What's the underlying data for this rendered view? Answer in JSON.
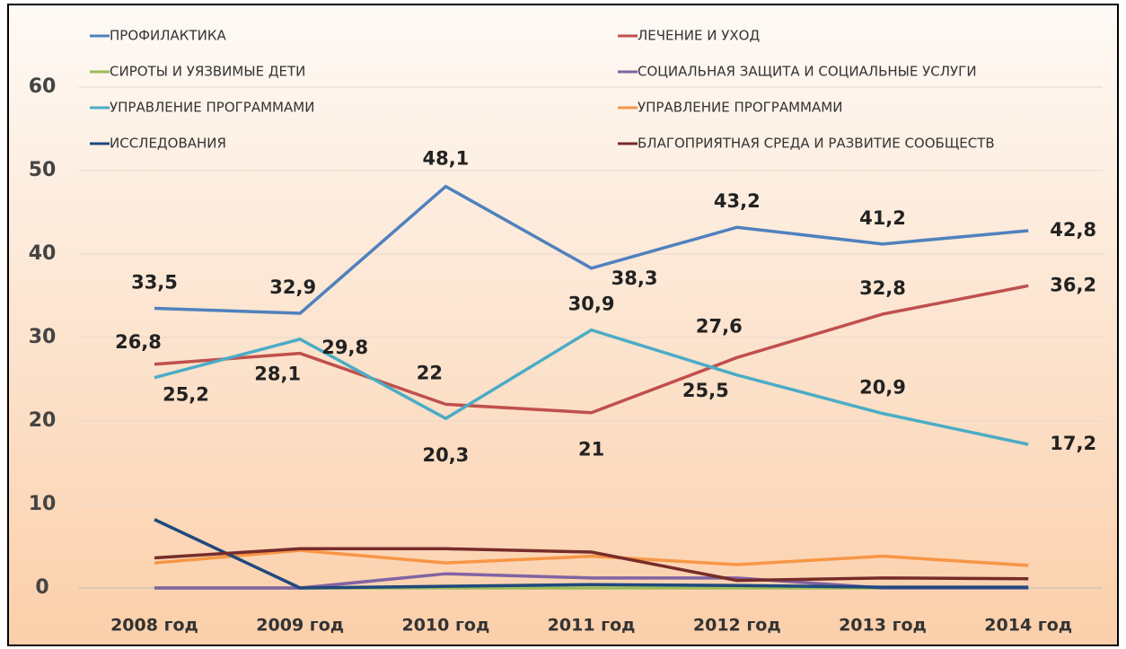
{
  "chart_data": {
    "type": "line",
    "categories": [
      "2008 год",
      "2009 год",
      "2010 год",
      "2011 год",
      "2012 год",
      "2013 год",
      "2014 год"
    ],
    "ylim": [
      0,
      60
    ],
    "yticks": [
      0,
      10,
      20,
      30,
      40,
      50,
      60
    ],
    "grid": true,
    "series": [
      {
        "name": "ПРОФИЛАКТИКА",
        "color": "#4f81bd",
        "values": [
          33.5,
          32.9,
          48.1,
          38.3,
          43.2,
          41.2,
          42.8
        ],
        "value_labels": [
          "33,5",
          "32,9",
          "48,1",
          "38,3",
          "43,2",
          "41,2",
          "42,8"
        ]
      },
      {
        "name": "ЛЕЧЕНИЕ И УХОД",
        "color": "#c0504d",
        "values": [
          26.8,
          28.1,
          22,
          21,
          27.6,
          32.8,
          36.2
        ],
        "value_labels": [
          "26,8",
          "28,1",
          "22",
          "21",
          "27,6",
          "32,8",
          "36,2"
        ]
      },
      {
        "name": "СИРОТЫ И УЯЗВИМЫЕ ДЕТИ",
        "color": "#9bbb59",
        "values": [
          0,
          0,
          0,
          0,
          0,
          0,
          0
        ]
      },
      {
        "name": "СОЦИАЛЬНАЯ ЗАЩИТА И СОЦИАЛЬНЫЕ УСЛУГИ",
        "color": "#8064a2",
        "values": [
          0,
          0,
          1.7,
          1.2,
          1.2,
          0,
          0
        ]
      },
      {
        "name": "УПРАВЛЕНИЕ ПРОГРАММАМИ",
        "color": "#4bacc6",
        "values": [
          25.2,
          29.8,
          20.3,
          30.9,
          25.5,
          20.9,
          17.2
        ],
        "value_labels": [
          "25,2",
          "29,8",
          "20,3",
          "30,9",
          "25,5",
          "20,9",
          "17,2"
        ]
      },
      {
        "name": "УПРАВЛЕНИЕ ПРОГРАММАМИ",
        "color": "#f79646",
        "values": [
          3,
          4.5,
          3,
          3.8,
          2.8,
          3.8,
          2.7
        ]
      },
      {
        "name": "ИССЛЕДОВАНИЯ",
        "color": "#1f497d",
        "values": [
          8.2,
          0,
          0.2,
          0.4,
          0.3,
          0.1,
          0.1
        ]
      },
      {
        "name": "БЛАГОПРИЯТНАЯ СРЕДА И РАЗВИТИЕ СООБЩЕСТВ",
        "color": "#772c2a",
        "values": [
          3.6,
          4.7,
          4.7,
          4.3,
          0.9,
          1.2,
          1.1
        ]
      }
    ]
  }
}
